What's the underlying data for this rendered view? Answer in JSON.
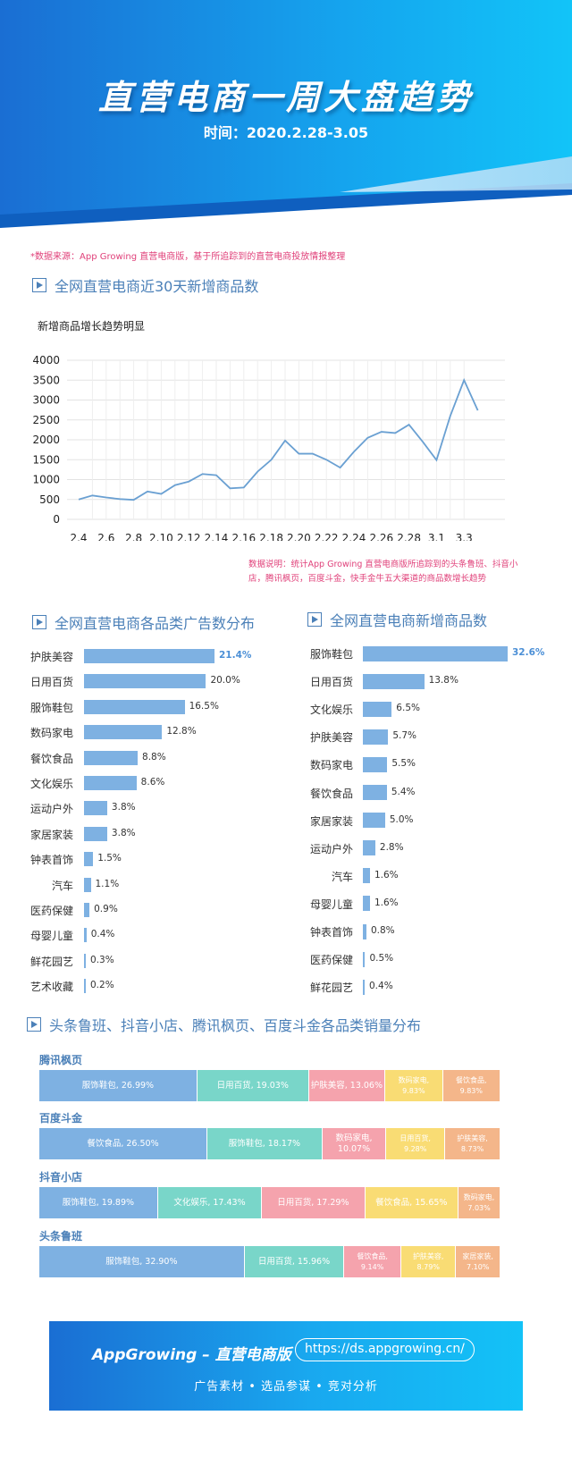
{
  "header": {
    "title": "直营电商一周大盘趋势",
    "time": "时间：2020.2.28-3.05"
  },
  "source_note": "*数据来源：App Growing 直营电商版，基于所追踪到的直营电商投放情报整理",
  "sections": {
    "line": "全网直营电商近30天新增商品数",
    "category_ads": "全网直营电商各品类广告数分布",
    "category_new": "全网直营电商新增商品数",
    "sales": "头条鲁班、抖音小店、腾讯枫页、百度斗金各品类销量分布"
  },
  "line_subtitle": "新增商品增长趋势明显",
  "line_note": "数据说明：统计App Growing 直营电商版所追踪到的头条鲁班、抖音小店，腾讯枫页，百度斗金，快手金牛五大渠道的商品数增长趋势",
  "chart_data": [
    {
      "type": "line",
      "title": "新增商品增长趋势明显",
      "y_ticks": [
        0,
        500,
        1000,
        1500,
        2000,
        2500,
        3000,
        3500,
        4000
      ],
      "ylim": [
        0,
        4000
      ],
      "x_ticks": [
        "2.4",
        "2.6",
        "2.8",
        "2.10",
        "2.12",
        "2.14",
        "2.16",
        "2.18",
        "2.20",
        "2.22",
        "2.24",
        "2.26",
        "2.28",
        "3.1",
        "3.3"
      ],
      "grid": true,
      "values": [
        500,
        600,
        550,
        510,
        490,
        700,
        640,
        860,
        950,
        1140,
        1110,
        780,
        800,
        1200,
        1500,
        1980,
        1650,
        1650,
        1500,
        1300,
        1700,
        2050,
        2200,
        2170,
        2380,
        1950,
        1490,
        2600,
        3500,
        2740
      ]
    },
    {
      "type": "bar",
      "title": "全网直营电商各品类广告数分布",
      "orientation": "horizontal",
      "max": 21.4,
      "categories": [
        "护肤美容",
        "日用百货",
        "服饰鞋包",
        "数码家电",
        "餐饮食品",
        "文化娱乐",
        "运动户外",
        "家居家装",
        "钟表首饰",
        "汽车",
        "医药保健",
        "母婴儿童",
        "鲜花园艺",
        "艺术收藏"
      ],
      "values": [
        21.4,
        20.0,
        16.5,
        12.8,
        8.8,
        8.6,
        3.8,
        3.8,
        1.5,
        1.1,
        0.9,
        0.4,
        0.3,
        0.2
      ],
      "labels": [
        "21.4%",
        "20.0%",
        "16.5%",
        "12.8%",
        "8.8%",
        "8.6%",
        "3.8%",
        "3.8%",
        "1.5%",
        "1.1%",
        "0.9%",
        "0.4%",
        "0.3%",
        "0.2%"
      ]
    },
    {
      "type": "bar",
      "title": "全网直营电商新增商品数",
      "orientation": "horizontal",
      "max": 32.6,
      "categories": [
        "服饰鞋包",
        "日用百货",
        "文化娱乐",
        "护肤美容",
        "数码家电",
        "餐饮食品",
        "家居家装",
        "运动户外",
        "汽车",
        "母婴儿童",
        "钟表首饰",
        "医药保健",
        "鲜花园艺"
      ],
      "values": [
        32.6,
        13.8,
        6.5,
        5.7,
        5.5,
        5.4,
        5.0,
        2.8,
        1.6,
        1.6,
        0.8,
        0.5,
        0.4
      ],
      "labels": [
        "32.6%",
        "13.8%",
        "6.5%",
        "5.7%",
        "5.5%",
        "5.4%",
        "5.0%",
        "2.8%",
        "1.6%",
        "1.6%",
        "0.8%",
        "0.5%",
        "0.4%"
      ]
    },
    {
      "type": "bar",
      "title": "头条鲁班、抖音小店、腾讯枫页、百度斗金各品类销量分布",
      "orientation": "horizontal-stacked",
      "platforms": [
        {
          "name": "腾讯枫页",
          "segments": [
            {
              "label": "服饰鞋包, 26.99%",
              "value": 26.99,
              "color": "#7eb1e2"
            },
            {
              "label": "日用百货, 19.03%",
              "value": 19.03,
              "color": "#79d6c9"
            },
            {
              "label": "护肤美容, 13.06%",
              "value": 13.06,
              "color": "#f5a3ad"
            },
            {
              "label": "数码家电, 9.83%",
              "value": 9.83,
              "color": "#f9dc74"
            },
            {
              "label": "餐饮食品, 9.83%",
              "value": 9.83,
              "color": "#f4b68a"
            }
          ]
        },
        {
          "name": "百度斗金",
          "segments": [
            {
              "label": "餐饮食品, 26.50%",
              "value": 26.5,
              "color": "#7eb1e2"
            },
            {
              "label": "服饰鞋包, 18.17%",
              "value": 18.17,
              "color": "#79d6c9"
            },
            {
              "label": "数码家电, 10.07%",
              "value": 10.07,
              "color": "#f5a3ad"
            },
            {
              "label": "日用百货, 9.28%",
              "value": 9.28,
              "color": "#f9dc74"
            },
            {
              "label": "护肤美容, 8.73%",
              "value": 8.73,
              "color": "#f4b68a"
            }
          ]
        },
        {
          "name": "抖音小店",
          "segments": [
            {
              "label": "服饰鞋包, 19.89%",
              "value": 19.89,
              "color": "#7eb1e2"
            },
            {
              "label": "文化娱乐, 17.43%",
              "value": 17.43,
              "color": "#79d6c9"
            },
            {
              "label": "日用百货, 17.29%",
              "value": 17.29,
              "color": "#f5a3ad"
            },
            {
              "label": "餐饮食品, 15.65%",
              "value": 15.65,
              "color": "#f9dc74"
            },
            {
              "label": "数码家电, 7.03%",
              "value": 7.03,
              "color": "#f4b68a"
            }
          ]
        },
        {
          "name": "头条鲁班",
          "segments": [
            {
              "label": "服饰鞋包, 32.90%",
              "value": 32.9,
              "color": "#7eb1e2"
            },
            {
              "label": "日用百货, 15.96%",
              "value": 15.96,
              "color": "#79d6c9"
            },
            {
              "label": "餐饮食品, 9.14%",
              "value": 9.14,
              "color": "#f5a3ad"
            },
            {
              "label": "护肤美容, 8.79%",
              "value": 8.79,
              "color": "#f9dc74"
            },
            {
              "label": "家居家装, 7.10%",
              "value": 7.1,
              "color": "#f4b68a"
            }
          ]
        }
      ]
    }
  ],
  "footer": {
    "brand": "AppGrowing – 直营电商版",
    "url": "https://ds.appgrowing.cn/",
    "tagline": "广告素材 • 选品参谋 • 竞对分析"
  },
  "colors": {
    "accent": "#4b80b8",
    "bar": "#7eb1e2",
    "note": "#e0417a",
    "hero_blue": "#1a6ed3",
    "hero_cyan": "#13c2f7"
  }
}
